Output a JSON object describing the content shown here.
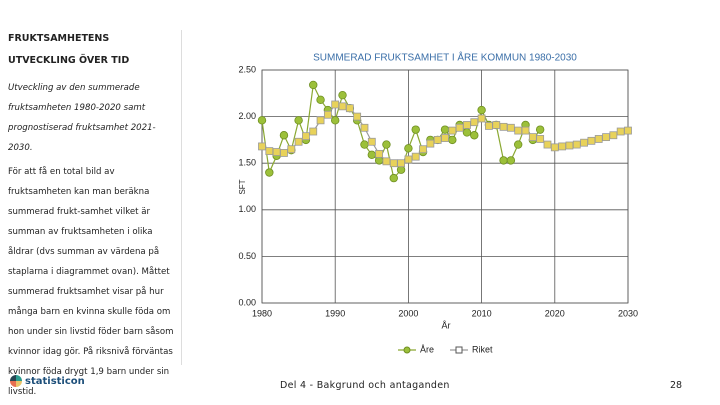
{
  "header": {
    "title": "FRUKTSAMHETENS UTVECKLING ÖVER TID"
  },
  "intro": "Utveckling av den summerade fruktsamheten 1980-2020 samt prognostiserad fruktsamhet 2021-2030.",
  "body": "För att få en total bild av fruktsamheten kan man beräkna summerad frukt-samhet vilket är summan av fruktsamheten i olika åldrar (dvs summan av värdena på staplarna i diagrammet ovan). Måttet summerad fruktsamhet visar på hur många barn en kvinna skulle föda om hon under sin livstid föder barn såsom kvinnor idag gör. På riksnivå förväntas kvinnor föda drygt 1,9 barn under sin livstid.",
  "footer": {
    "logo": "statisticon",
    "section": "Del 4 - Bakgrund och antaganden",
    "page": "28"
  },
  "chart_data": {
    "type": "line",
    "title": "SUMMERAD FRUKTSAMHET I ÅRE KOMMUN 1980-2030",
    "x_label": "År",
    "y_label": "SFT",
    "grid": true,
    "xlim": [
      1980,
      2030
    ],
    "xticks": [
      1980,
      1990,
      2000,
      2010,
      2020,
      2030
    ],
    "ylim": [
      0,
      2.5
    ],
    "yticks": [
      {
        "value": 0,
        "label": "0.00"
      },
      {
        "value": 0.5,
        "label": "0.50"
      },
      {
        "value": 1,
        "label": "1.00"
      },
      {
        "value": 1.5,
        "label": "1.50"
      },
      {
        "value": 2,
        "label": "2.00"
      },
      {
        "value": 2.5,
        "label": "2.50"
      }
    ],
    "series": [
      {
        "name": "Åre",
        "color": "#8aa832",
        "marker": "circle",
        "x": [
          1980,
          1981,
          1982,
          1983,
          1984,
          1985,
          1986,
          1987,
          1988,
          1989,
          1990,
          1991,
          1992,
          1993,
          1994,
          1995,
          1996,
          1997,
          1998,
          1999,
          2000,
          2001,
          2002,
          2003,
          2004,
          2005,
          2006,
          2007,
          2008,
          2009,
          2010,
          2011,
          2012,
          2013,
          2014,
          2015,
          2016,
          2017,
          2018
        ],
        "values": [
          1.96,
          1.4,
          1.58,
          1.8,
          1.64,
          1.96,
          1.75,
          2.34,
          2.18,
          2.07,
          1.96,
          2.23,
          2.09,
          1.96,
          1.7,
          1.59,
          1.53,
          1.7,
          1.34,
          1.43,
          1.66,
          1.86,
          1.62,
          1.75,
          1.75,
          1.86,
          1.75,
          1.91,
          1.83,
          1.8,
          2.07,
          1.91,
          1.91,
          1.53,
          1.53,
          1.7,
          1.91,
          1.75,
          1.86
        ]
      },
      {
        "name": "Riket",
        "color": "#9a9a9a",
        "marker": "square",
        "x": [
          1980,
          1981,
          1982,
          1983,
          1984,
          1985,
          1986,
          1987,
          1988,
          1989,
          1990,
          1991,
          1992,
          1993,
          1994,
          1995,
          1996,
          1997,
          1998,
          1999,
          2000,
          2001,
          2002,
          2003,
          2004,
          2005,
          2006,
          2007,
          2008,
          2009,
          2010,
          2011,
          2012,
          2013,
          2014,
          2015,
          2016,
          2017,
          2018,
          2019,
          2020,
          2021,
          2022,
          2023,
          2024,
          2025,
          2026,
          2027,
          2028,
          2029,
          2030
        ],
        "values": [
          1.68,
          1.63,
          1.62,
          1.61,
          1.65,
          1.73,
          1.79,
          1.84,
          1.96,
          2.02,
          2.13,
          2.11,
          2.09,
          2.0,
          1.88,
          1.73,
          1.6,
          1.52,
          1.5,
          1.5,
          1.54,
          1.57,
          1.65,
          1.71,
          1.75,
          1.77,
          1.85,
          1.88,
          1.91,
          1.94,
          1.98,
          1.9,
          1.91,
          1.89,
          1.88,
          1.85,
          1.85,
          1.78,
          1.76,
          1.7,
          1.67,
          1.68,
          1.69,
          1.7,
          1.72,
          1.74,
          1.76,
          1.78,
          1.8,
          1.84,
          1.85
        ]
      }
    ]
  }
}
